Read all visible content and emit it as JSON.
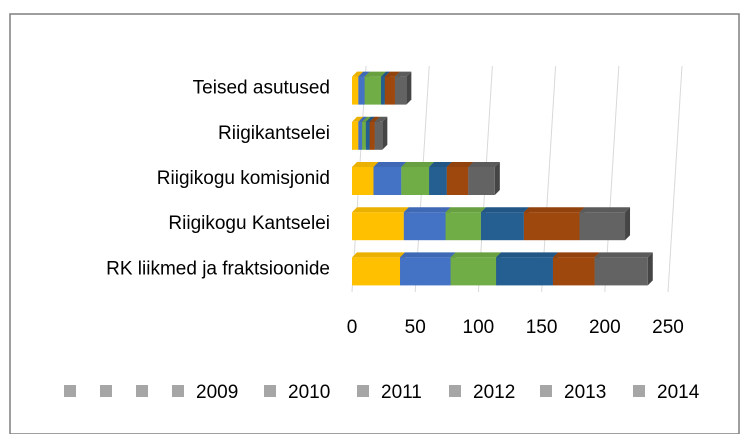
{
  "chart_data": {
    "type": "bar",
    "orientation": "horizontal",
    "stacked": true,
    "categories": [
      "Teised asutused",
      "Riigikantselei",
      "Riigikogu komisjonid",
      "Riigikogu Kantselei",
      "RK liikmed ja fraktsioonide"
    ],
    "series": [
      {
        "name": "2009",
        "color": "#ffc000",
        "values": [
          5,
          5,
          17,
          41,
          38
        ]
      },
      {
        "name": "2010",
        "color": "#4472c4",
        "values": [
          5,
          3,
          22,
          33,
          40
        ]
      },
      {
        "name": "2011",
        "color": "#70ad47",
        "values": [
          13,
          3,
          22,
          28,
          36
        ]
      },
      {
        "name": "2012",
        "color": "#255e91",
        "values": [
          3,
          3,
          14,
          34,
          45
        ]
      },
      {
        "name": "2013",
        "color": "#9e480e",
        "values": [
          8,
          4,
          17,
          44,
          33
        ]
      },
      {
        "name": "2014",
        "color": "#636363",
        "values": [
          9,
          6,
          21,
          36,
          42
        ]
      }
    ],
    "xlim": [
      0,
      250
    ],
    "xticks": [
      0,
      50,
      100,
      150,
      200,
      250
    ],
    "grid": true,
    "legend": "bottom"
  }
}
